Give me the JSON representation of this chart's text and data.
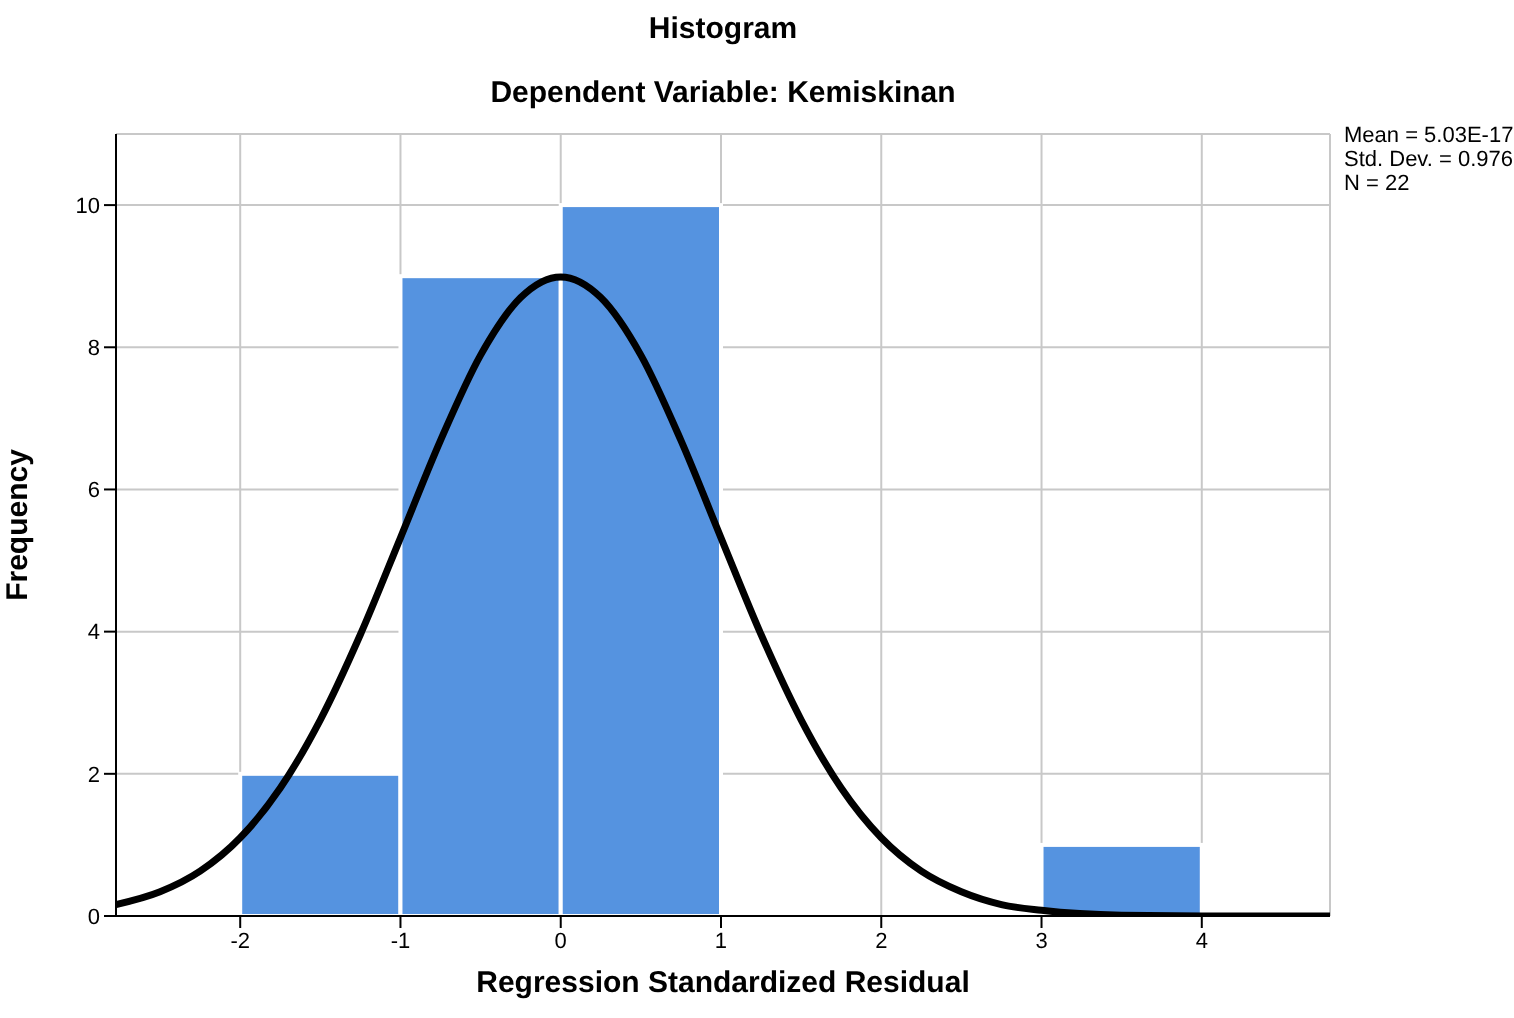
{
  "chart_data": {
    "type": "histogram",
    "title": "Histogram",
    "subtitle": "Dependent Variable: Kemiskinan",
    "xlabel": "Regression Standardized Residual",
    "ylabel": "Frequency",
    "bins": [
      -2,
      -1,
      0,
      1,
      2,
      3,
      4
    ],
    "values": [
      2,
      9,
      10,
      0,
      0,
      1
    ],
    "color": "#5593e0",
    "series": [
      {
        "type": "line",
        "color": "#000000",
        "x": [
          -2.775,
          -2.5,
          -2.25,
          -2,
          -1.75,
          -1.5,
          -1.25,
          -1,
          -0.75,
          -0.5,
          -0.25,
          0,
          0.25,
          0.5,
          0.75,
          1,
          1.25,
          1.5,
          1.75,
          2,
          2.25,
          2.5,
          2.75,
          3,
          3.5,
          4,
          4.8
        ],
        "values": [
          0.16,
          0.34,
          0.63,
          1.1,
          1.8,
          2.76,
          3.96,
          5.32,
          6.69,
          7.89,
          8.7,
          8.99,
          8.7,
          7.89,
          6.69,
          5.32,
          3.96,
          2.76,
          1.8,
          1.1,
          0.63,
          0.34,
          0.16,
          0.08,
          0.01,
          0,
          0
        ]
      }
    ],
    "xlim": [
      -2.775,
      4.8
    ],
    "xticks": [
      -2,
      -1,
      0,
      1,
      2,
      3,
      4
    ],
    "ylim": [
      0,
      11
    ],
    "yticks": [
      0,
      2,
      4,
      6,
      8,
      10
    ],
    "grid": true,
    "legend": false,
    "marker": "none",
    "line_style": "solid",
    "annotations": [
      "Mean = 5.03E-17",
      "Std. Dev. = 0.976",
      "N = 22"
    ]
  }
}
